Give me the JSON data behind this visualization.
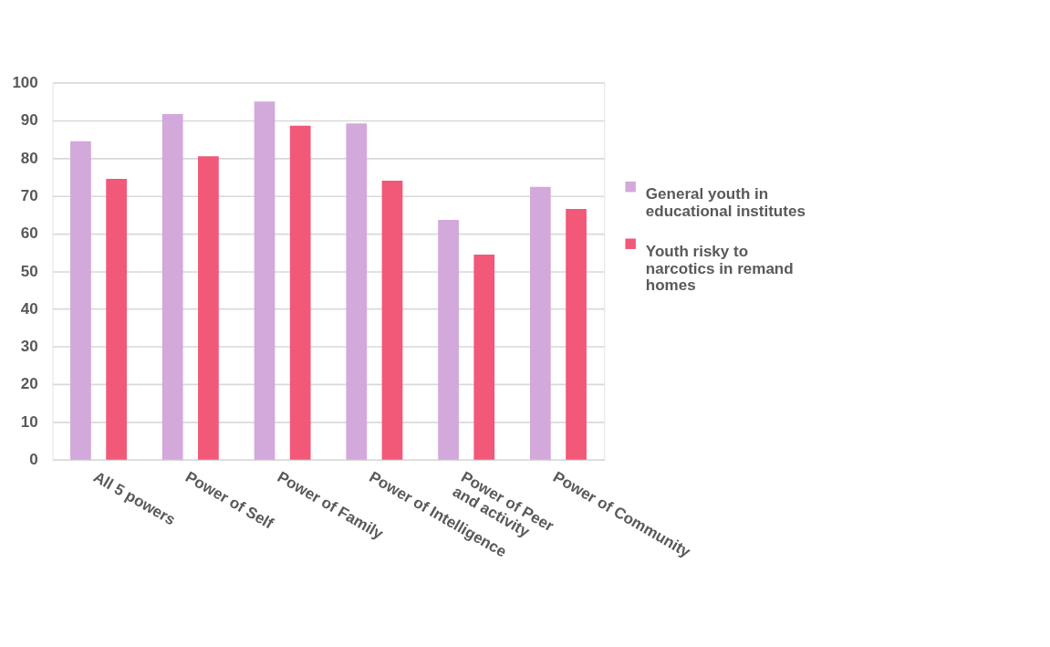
{
  "chart_data": {
    "type": "bar",
    "categories": [
      "All 5 powers",
      "Power of Self",
      "Power of Family",
      "Power of Intelligence",
      "Power of Peer\nand activity",
      "Power of Community"
    ],
    "series": [
      {
        "name": "General youth in\neducational institutes",
        "color": "#d3a8da",
        "values": [
          84.5,
          91.7,
          95.0,
          89.2,
          63.6,
          72.4
        ]
      },
      {
        "name": "Youth risky to\nnarcotics in remand\nhomes",
        "color": "#f25878",
        "values": [
          74.5,
          80.5,
          88.6,
          74.0,
          54.4,
          66.5
        ]
      }
    ],
    "ylim": [
      0,
      100
    ],
    "yticks": [
      0,
      10,
      20,
      30,
      40,
      50,
      60,
      70,
      80,
      90,
      100
    ],
    "grid": "y",
    "legend": "right"
  }
}
